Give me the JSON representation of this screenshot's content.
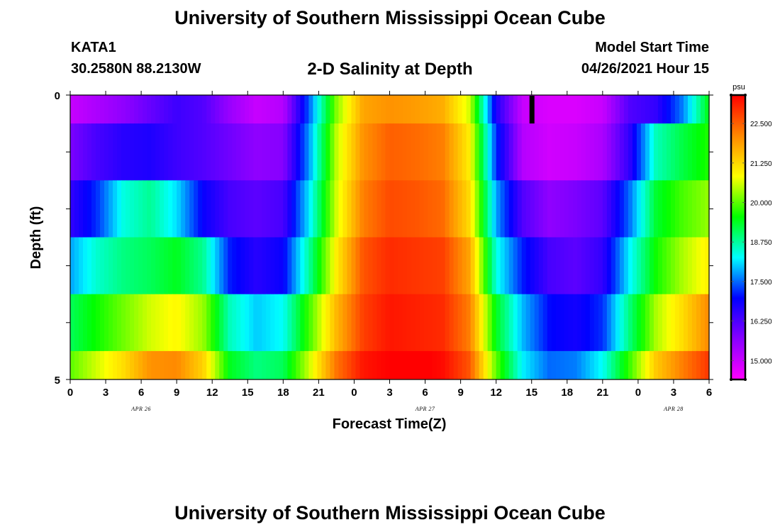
{
  "header": {
    "title": "University of Southern Mississippi Ocean Cube",
    "station_id": "KATA1",
    "station_coords": "30.2580N  88.2130W",
    "plot_title": "2-D Salinity at Depth",
    "model_start_label": "Model Start Time",
    "model_start_value": "04/26/2021 Hour 15"
  },
  "footer": {
    "title": "University of Southern Mississippi Ocean Cube"
  },
  "chart_data": {
    "type": "heatmap",
    "xlabel": "Forecast Time(Z)",
    "ylabel": "Depth (ft)",
    "x_ticks": [
      "0",
      "3",
      "6",
      "9",
      "12",
      "15",
      "18",
      "21",
      "0",
      "3",
      "6",
      "9",
      "12",
      "15",
      "18",
      "21",
      "0",
      "3",
      "6"
    ],
    "date_labels": [
      {
        "label": "APR 26",
        "at_tick": 2
      },
      {
        "label": "APR 27",
        "at_tick": 10
      },
      {
        "label": "APR 28",
        "at_tick": 17
      }
    ],
    "y_tick_labels": [
      {
        "label": "0",
        "depth": 0
      },
      {
        "label": "5",
        "depth": 5
      }
    ],
    "y_minor_ticks": [
      1,
      2,
      3,
      4
    ],
    "ylim": [
      0,
      5
    ],
    "xlim_hours": [
      0,
      54
    ],
    "colorbar": {
      "unit": "psu",
      "vmin": 14.4,
      "vmax": 23.4,
      "ticks": [
        "15.000",
        "16.250",
        "17.500",
        "18.750",
        "20.000",
        "21.250",
        "22.500"
      ],
      "tick_values": [
        15.0,
        16.25,
        17.5,
        18.75,
        20.0,
        21.25,
        22.5
      ],
      "colors": [
        "#ff00ff",
        "#8800ff",
        "#0000ff",
        "#00ffff",
        "#00ff00",
        "#ffff00",
        "#ff8800",
        "#ff0000"
      ]
    },
    "model_start_marker_hour": 39,
    "layers": [
      {
        "depth_range": [
          0,
          0.5
        ],
        "values": [
          15.0,
          15.3,
          15.6,
          16.0,
          16.4,
          16.2,
          15.5,
          15.0,
          15.2,
          17.5,
          20.2,
          21.8,
          22.0,
          21.9,
          21.7,
          20.6,
          16.7,
          15.0,
          14.8,
          14.8,
          15.0,
          16.2,
          16.5,
          17.6,
          19.5
        ]
      },
      {
        "depth_range": [
          0.5,
          1.5
        ],
        "values": [
          15.8,
          16.3,
          16.6,
          16.7,
          16.4,
          16.2,
          15.9,
          15.6,
          15.7,
          17.8,
          20.5,
          22.0,
          22.5,
          22.4,
          22.2,
          21.0,
          17.2,
          15.2,
          14.9,
          15.0,
          15.3,
          16.5,
          18.6,
          19.2,
          19.7
        ]
      },
      {
        "depth_range": [
          1.5,
          2.5
        ],
        "values": [
          16.5,
          17.2,
          18.4,
          18.8,
          18.1,
          16.9,
          16.3,
          16.1,
          16.3,
          18.2,
          20.6,
          22.2,
          22.7,
          22.6,
          22.4,
          21.2,
          17.8,
          16.2,
          15.6,
          15.8,
          16.1,
          17.5,
          19.3,
          19.9,
          20.3
        ]
      },
      {
        "depth_range": [
          2.5,
          3.5
        ],
        "values": [
          17.8,
          18.5,
          18.9,
          19.1,
          19.4,
          18.8,
          17.1,
          16.6,
          16.9,
          18.8,
          21.0,
          22.6,
          23.0,
          22.9,
          22.8,
          21.8,
          18.4,
          17.1,
          16.3,
          16.1,
          16.5,
          18.2,
          19.6,
          20.4,
          21.0
        ]
      },
      {
        "depth_range": [
          3.5,
          4.5
        ],
        "values": [
          19.1,
          19.6,
          20.1,
          20.6,
          20.9,
          20.3,
          18.6,
          18.0,
          18.3,
          19.9,
          21.6,
          22.8,
          23.2,
          23.1,
          23.0,
          22.2,
          19.4,
          17.9,
          17.0,
          16.8,
          17.2,
          18.9,
          20.4,
          21.2,
          22.1
        ]
      },
      {
        "depth_range": [
          4.5,
          5
        ],
        "values": [
          20.0,
          20.6,
          21.2,
          22.0,
          22.1,
          21.3,
          19.4,
          18.9,
          19.1,
          20.6,
          22.3,
          23.2,
          23.4,
          23.5,
          23.3,
          22.6,
          20.0,
          18.2,
          17.5,
          17.6,
          18.3,
          19.8,
          21.4,
          22.2,
          22.9
        ]
      }
    ]
  }
}
